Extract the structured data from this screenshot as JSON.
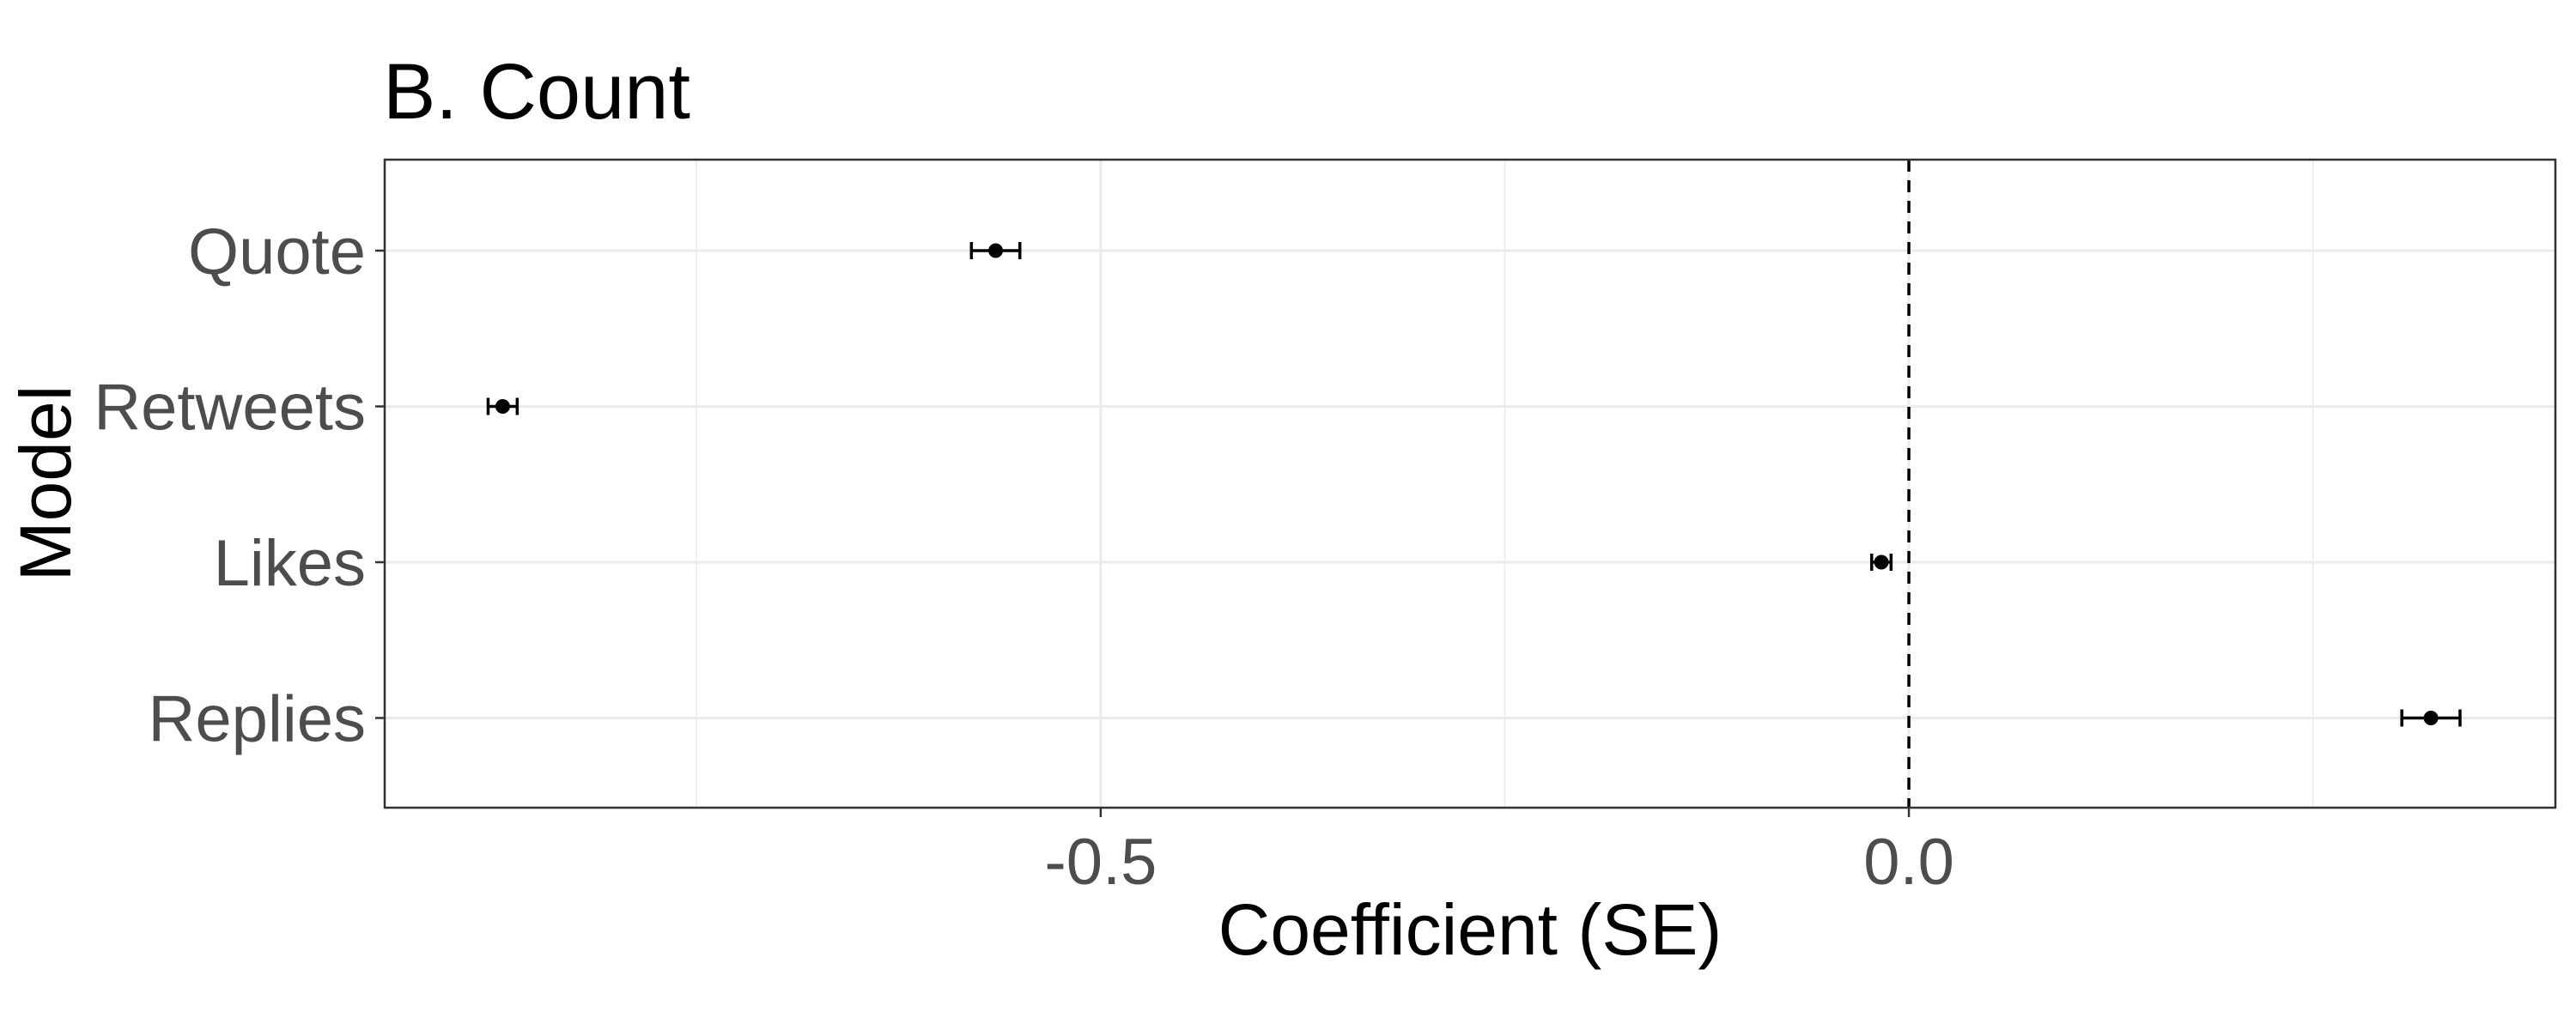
{
  "chart_data": {
    "type": "scatter",
    "title": "B. Count",
    "xlabel": "Coefficient (SE)",
    "ylabel": "Model",
    "categories": [
      "Quote",
      "Retweets",
      "Likes",
      "Replies"
    ],
    "series": [
      {
        "values": [
          -0.565,
          -0.87,
          -0.017,
          0.323
        ],
        "ci_low": [
          -0.58,
          -0.879,
          -0.023,
          0.305
        ],
        "ci_high": [
          -0.55,
          -0.861,
          -0.011,
          0.341
        ]
      }
    ],
    "xlim": [
      -0.943,
      0.4
    ],
    "xticks": [
      -0.5,
      0.0
    ],
    "xtick_labels": [
      "-0.5",
      "0.0"
    ],
    "reference_line": 0.0,
    "grid": true,
    "legend": "none"
  }
}
